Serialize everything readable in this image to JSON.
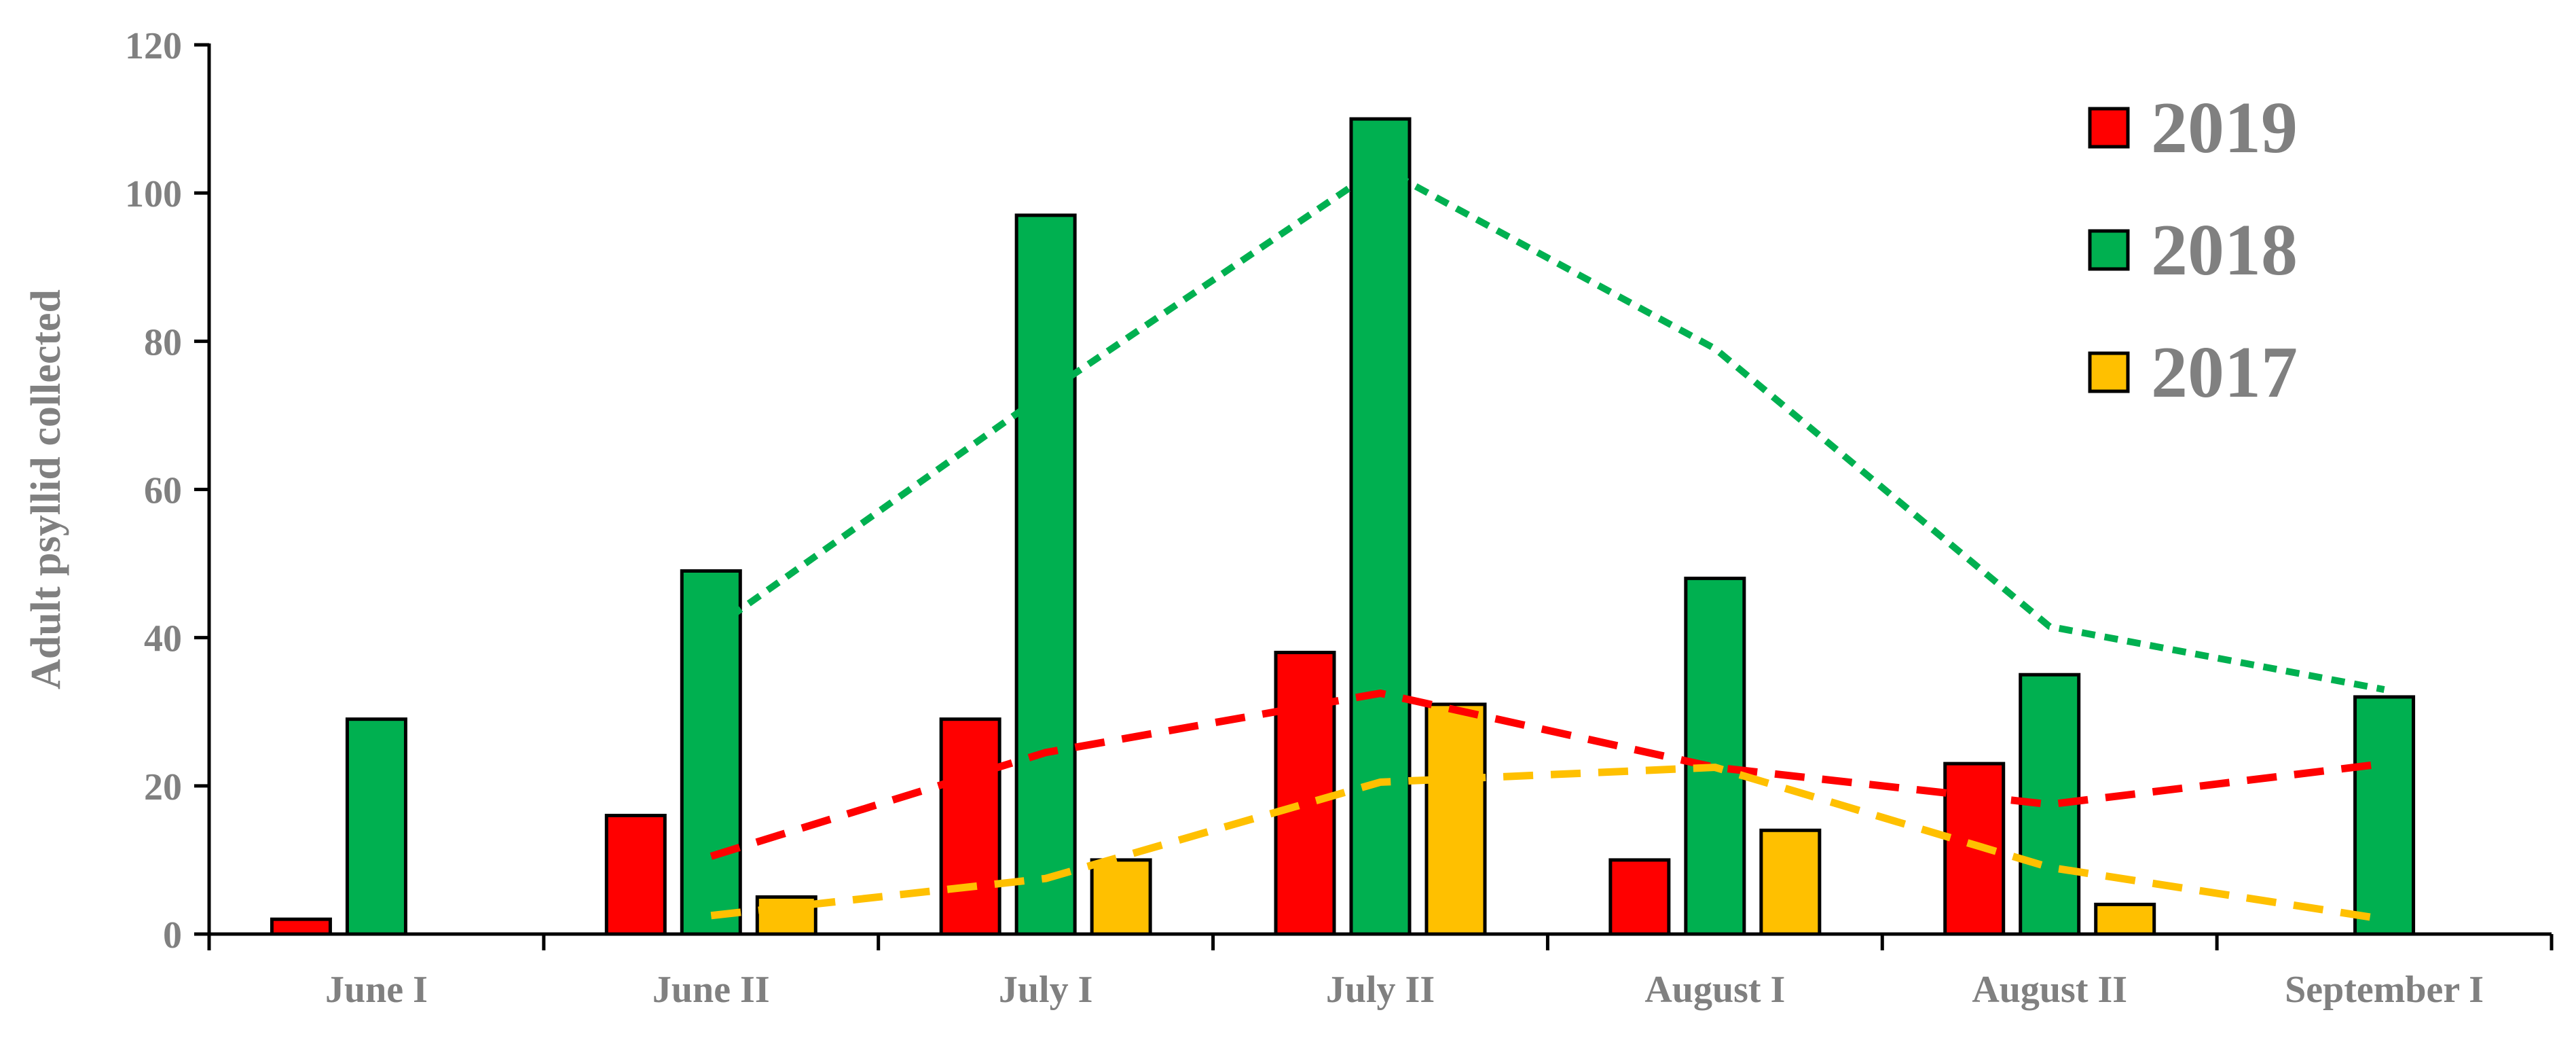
{
  "chart_data": {
    "type": "bar",
    "title": "",
    "xlabel": "",
    "ylabel": "Adult psyllid collected",
    "ylim": [
      0,
      120
    ],
    "yticks": [
      0,
      20,
      40,
      60,
      80,
      100,
      120
    ],
    "grid": false,
    "legend_position": "top-right",
    "categories": [
      "June I",
      "June II",
      "July I",
      "July II",
      "August I",
      "August II",
      "September I"
    ],
    "series": [
      {
        "name": "2019",
        "color": "#ff0000",
        "values": [
          2,
          16,
          29,
          38,
          10,
          23,
          null
        ]
      },
      {
        "name": "2018",
        "color": "#00b050",
        "values": [
          29,
          49,
          97,
          110,
          48,
          35,
          32
        ]
      },
      {
        "name": "2017",
        "color": "#ffc000",
        "values": [
          null,
          5,
          10,
          31,
          14,
          4,
          null
        ]
      }
    ],
    "trendlines": [
      {
        "series": "2019",
        "style": "dashed",
        "points": [
          [
            1,
            10.5
          ],
          [
            2,
            24.5
          ],
          [
            3,
            32.5
          ],
          [
            4,
            22.5
          ],
          [
            5,
            17.5
          ],
          [
            6,
            23
          ]
        ]
      },
      {
        "series": "2018",
        "style": "dotted",
        "points": [
          [
            1,
            41
          ],
          [
            2,
            73
          ],
          [
            3,
            103.5
          ],
          [
            4,
            79
          ],
          [
            5,
            41.5
          ],
          [
            6,
            33
          ]
        ]
      },
      {
        "series": "2017",
        "style": "dashed",
        "points": [
          [
            1,
            2.5
          ],
          [
            2,
            7.5
          ],
          [
            3,
            20.5
          ],
          [
            4,
            22.5
          ],
          [
            5,
            9
          ],
          [
            6,
            2
          ]
        ]
      }
    ]
  }
}
